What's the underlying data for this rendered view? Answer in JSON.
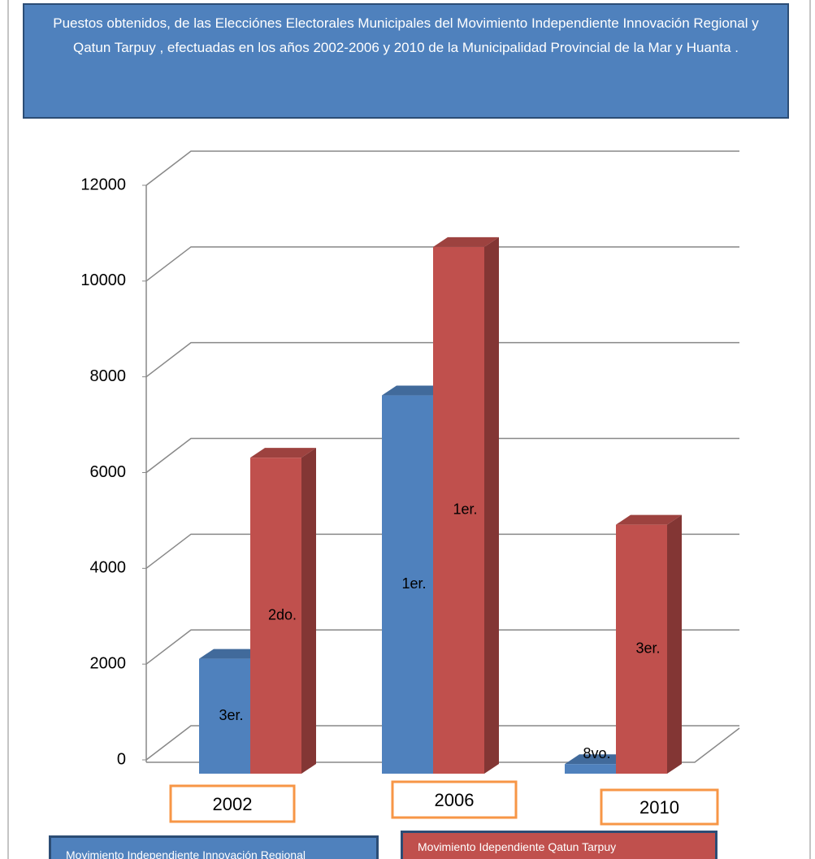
{
  "chart_data": {
    "type": "bar3d",
    "title": "Puestos obtenidos, de las Elecciónes Electorales  Municipales del Movimiento Independiente  Innovación  Regional   y Qatun Tarpuy  , efectuadas en los años 2002-2006 y 2010 de la Municipalidad Provincial de  la Mar y  Huanta .",
    "categories": [
      "2002",
      "2006",
      "2010"
    ],
    "series": [
      {
        "name": "Movimiento Independiente  Innovación Regional",
        "color": "#4f81bd",
        "values": [
          2400,
          7900,
          200
        ],
        "labels": [
          "3er.",
          "1er.",
          "8vo."
        ]
      },
      {
        "name": "Movimiento Idependiente Qatun Tarpuy",
        "color": "#c0504d",
        "values": [
          6600,
          11000,
          5200
        ],
        "labels": [
          "2do.",
          "1er.",
          "3er."
        ]
      }
    ],
    "ylim": [
      0,
      12000
    ],
    "yticks": [
      0,
      2000,
      4000,
      6000,
      8000,
      10000,
      12000
    ],
    "grid": true
  }
}
